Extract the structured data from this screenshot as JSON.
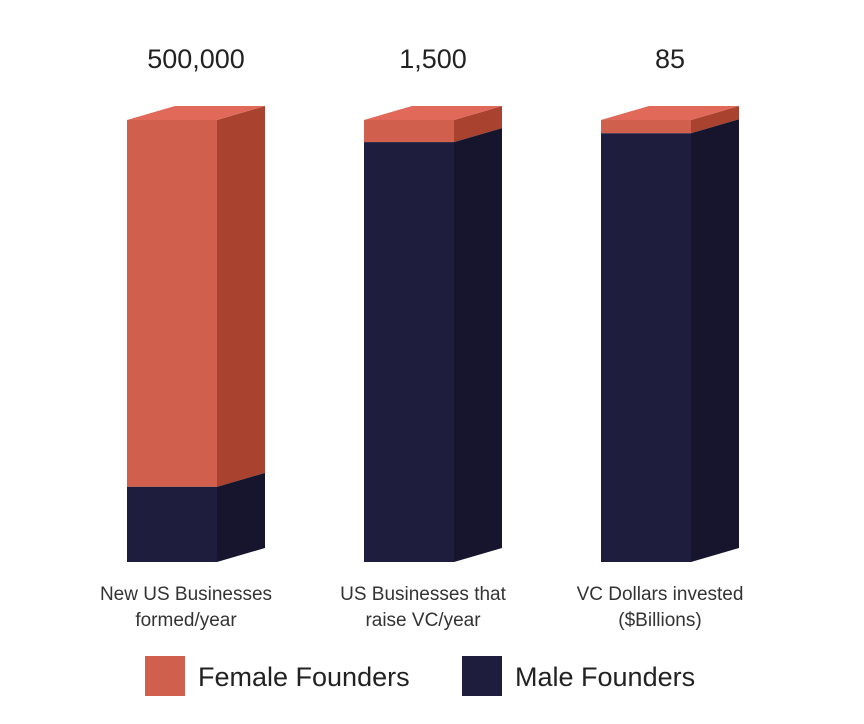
{
  "chart_data": {
    "type": "bar",
    "stacked": true,
    "three_d": true,
    "categories": [
      [
        "New US Businesses",
        "formed/year"
      ],
      [
        "US Businesses that",
        "raise VC/year"
      ],
      [
        "VC Dollars invested",
        "($Billions)"
      ]
    ],
    "totals": [
      "500,000",
      "1,500",
      "85"
    ],
    "series": [
      {
        "name": "Male Founders",
        "color": "#1f1d3d",
        "side_color": "#17152e",
        "fractions": [
          0.17,
          0.95,
          0.97
        ]
      },
      {
        "name": "Female Founders",
        "color": "#d0604d",
        "side_color": "#a9432f",
        "top_color": "#e0695a",
        "fractions": [
          0.83,
          0.05,
          0.03
        ]
      }
    ],
    "legend": [
      {
        "name": "Female Founders",
        "color": "#d0604d"
      },
      {
        "name": "Male Founders",
        "color": "#1f1d3d"
      }
    ],
    "legend_position": "bottom",
    "grid": false
  }
}
